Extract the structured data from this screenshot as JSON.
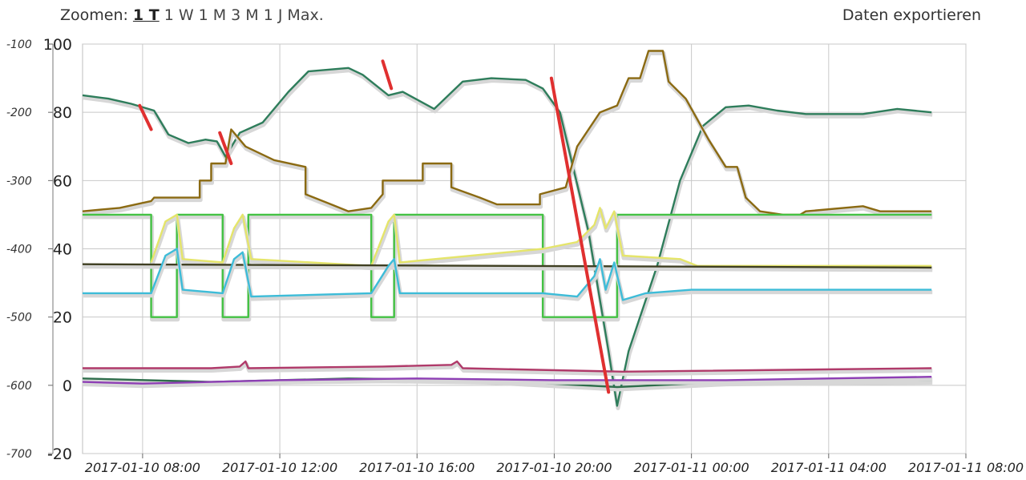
{
  "toolbar": {
    "zoom_label": "Zoomen:",
    "zoom_options": [
      "1 T",
      "1 W",
      "1 M",
      "3 M",
      "1 J",
      "Max."
    ],
    "zoom_active": "1 T",
    "export_label": "Daten exportieren"
  },
  "chart_data": {
    "type": "line",
    "title": "",
    "xlabel": "",
    "ylabel": "",
    "x_ticks": [
      "2017-01-10 08:00",
      "2017-01-10 12:00",
      "2017-01-10 16:00",
      "2017-01-10 20:00",
      "2017-01-11 00:00",
      "2017-01-11 04:00",
      "2017-01-11 08:00"
    ],
    "xlim": [
      "2017-01-10 06:15",
      "2017-01-11 08:00"
    ],
    "y_left": {
      "ticks": [
        -100,
        -200,
        -300,
        -400,
        -500,
        -600,
        -700
      ],
      "ylim": [
        -700,
        -100
      ]
    },
    "y_right": {
      "ticks": [
        100,
        80,
        60,
        40,
        20,
        0,
        -20
      ],
      "ylim": [
        -20,
        100
      ]
    },
    "grid": true,
    "legend": "none",
    "series": [
      {
        "color": "#2e7d5b",
        "axis": "right",
        "points": [
          [
            "2017-01-10 06:15",
            85
          ],
          [
            "2017-01-10 07:00",
            84
          ],
          [
            "2017-01-10 07:40",
            82.5
          ],
          [
            "2017-01-10 08:20",
            80.5
          ],
          [
            "2017-01-10 08:45",
            73.5
          ],
          [
            "2017-01-10 09:20",
            71
          ],
          [
            "2017-01-10 09:50",
            72
          ],
          [
            "2017-01-10 10:10",
            71.5
          ],
          [
            "2017-01-10 10:25",
            67
          ],
          [
            "2017-01-10 10:50",
            74
          ],
          [
            "2017-01-10 11:30",
            77
          ],
          [
            "2017-01-10 12:15",
            86
          ],
          [
            "2017-01-10 12:50",
            92
          ],
          [
            "2017-01-10 14:00",
            93
          ],
          [
            "2017-01-10 14:25",
            91
          ],
          [
            "2017-01-10 15:10",
            85
          ],
          [
            "2017-01-10 15:35",
            86
          ],
          [
            "2017-01-10 16:30",
            81
          ],
          [
            "2017-01-10 17:20",
            89
          ],
          [
            "2017-01-10 18:10",
            90
          ],
          [
            "2017-01-10 19:10",
            89.5
          ],
          [
            "2017-01-10 19:40",
            87
          ],
          [
            "2017-01-10 20:10",
            80
          ],
          [
            "2017-01-10 21:00",
            45
          ],
          [
            "2017-01-10 21:35",
            10
          ],
          [
            "2017-01-10 21:50",
            -6
          ],
          [
            "2017-01-10 22:10",
            10
          ],
          [
            "2017-01-10 23:00",
            35
          ],
          [
            "2017-01-10 23:40",
            60
          ],
          [
            "2017-01-11 00:20",
            76
          ],
          [
            "2017-01-11 01:00",
            81.5
          ],
          [
            "2017-01-11 01:40",
            82
          ],
          [
            "2017-01-11 02:30",
            80.5
          ],
          [
            "2017-01-11 03:20",
            79.5
          ],
          [
            "2017-01-11 05:00",
            79.5
          ],
          [
            "2017-01-11 06:00",
            81
          ],
          [
            "2017-01-11 07:00",
            80
          ]
        ]
      },
      {
        "color": "#8b6a12",
        "axis": "right",
        "points": [
          [
            "2017-01-10 06:15",
            51
          ],
          [
            "2017-01-10 07:20",
            52
          ],
          [
            "2017-01-10 08:15",
            54
          ],
          [
            "2017-01-10 08:20",
            55
          ],
          [
            "2017-01-10 09:40",
            55
          ],
          [
            "2017-01-10 09:40",
            60
          ],
          [
            "2017-01-10 10:00",
            60
          ],
          [
            "2017-01-10 10:00",
            65
          ],
          [
            "2017-01-10 10:25",
            65
          ],
          [
            "2017-01-10 10:35",
            75
          ],
          [
            "2017-01-10 11:00",
            70
          ],
          [
            "2017-01-10 11:50",
            66
          ],
          [
            "2017-01-10 12:45",
            64
          ],
          [
            "2017-01-10 12:45",
            56
          ],
          [
            "2017-01-10 13:30",
            53
          ],
          [
            "2017-01-10 14:00",
            51
          ],
          [
            "2017-01-10 14:40",
            52
          ],
          [
            "2017-01-10 15:00",
            56
          ],
          [
            "2017-01-10 15:00",
            60
          ],
          [
            "2017-01-10 16:00",
            60
          ],
          [
            "2017-01-10 16:10",
            60
          ],
          [
            "2017-01-10 16:10",
            65
          ],
          [
            "2017-01-10 17:00",
            65
          ],
          [
            "2017-01-10 17:00",
            58
          ],
          [
            "2017-01-10 17:50",
            55
          ],
          [
            "2017-01-10 18:20",
            53
          ],
          [
            "2017-01-10 19:35",
            53
          ],
          [
            "2017-01-10 19:35",
            56
          ],
          [
            "2017-01-10 20:20",
            58
          ],
          [
            "2017-01-10 20:40",
            70
          ],
          [
            "2017-01-10 21:20",
            80
          ],
          [
            "2017-01-10 21:50",
            82
          ],
          [
            "2017-01-10 22:00",
            86
          ],
          [
            "2017-01-10 22:10",
            90
          ],
          [
            "2017-01-10 22:30",
            90
          ],
          [
            "2017-01-10 22:45",
            98
          ],
          [
            "2017-01-10 23:10",
            98
          ],
          [
            "2017-01-10 23:20",
            89
          ],
          [
            "2017-01-10 23:50",
            84
          ],
          [
            "2017-01-11 00:30",
            72
          ],
          [
            "2017-01-11 01:00",
            64
          ],
          [
            "2017-01-11 01:20",
            64
          ],
          [
            "2017-01-11 01:35",
            55
          ],
          [
            "2017-01-11 02:00",
            51
          ],
          [
            "2017-01-11 02:40",
            50
          ],
          [
            "2017-01-11 03:10",
            50
          ],
          [
            "2017-01-11 03:20",
            51
          ],
          [
            "2017-01-11 05:00",
            52.5
          ],
          [
            "2017-01-11 05:30",
            51
          ],
          [
            "2017-01-11 07:00",
            51
          ]
        ]
      },
      {
        "color": "#44c244",
        "axis": "right",
        "points": [
          [
            "2017-01-10 06:15",
            50
          ],
          [
            "2017-01-10 08:15",
            50
          ],
          [
            "2017-01-10 08:15",
            20
          ],
          [
            "2017-01-10 09:00",
            20
          ],
          [
            "2017-01-10 09:00",
            50
          ],
          [
            "2017-01-10 10:20",
            50
          ],
          [
            "2017-01-10 10:20",
            20
          ],
          [
            "2017-01-10 11:05",
            20
          ],
          [
            "2017-01-10 11:05",
            50
          ],
          [
            "2017-01-10 14:40",
            50
          ],
          [
            "2017-01-10 14:40",
            20
          ],
          [
            "2017-01-10 15:20",
            20
          ],
          [
            "2017-01-10 15:20",
            50
          ],
          [
            "2017-01-10 19:40",
            50
          ],
          [
            "2017-01-10 19:40",
            20
          ],
          [
            "2017-01-10 21:50",
            20
          ],
          [
            "2017-01-10 21:50",
            50
          ],
          [
            "2017-01-11 07:00",
            50
          ]
        ]
      },
      {
        "color": "#e5e56a",
        "axis": "right",
        "points": [
          [
            "2017-01-10 08:15",
            36
          ],
          [
            "2017-01-10 08:40",
            48
          ],
          [
            "2017-01-10 09:00",
            50
          ],
          [
            "2017-01-10 09:10",
            37
          ],
          [
            "2017-01-10 10:20",
            36
          ],
          [
            "2017-01-10 10:40",
            46
          ],
          [
            "2017-01-10 10:55",
            50
          ],
          [
            "2017-01-10 11:10",
            37
          ],
          [
            "2017-01-10 14:40",
            35
          ],
          [
            "2017-01-10 15:10",
            48
          ],
          [
            "2017-01-10 15:20",
            50
          ],
          [
            "2017-01-10 15:30",
            36
          ],
          [
            "2017-01-10 19:40",
            40
          ],
          [
            "2017-01-10 20:40",
            42
          ],
          [
            "2017-01-10 21:10",
            47
          ],
          [
            "2017-01-10 21:20",
            52
          ],
          [
            "2017-01-10 21:30",
            46
          ],
          [
            "2017-01-10 21:45",
            51
          ],
          [
            "2017-01-10 22:00",
            38
          ],
          [
            "2017-01-10 23:40",
            37
          ],
          [
            "2017-01-11 00:10",
            35
          ],
          [
            "2017-01-11 07:00",
            35
          ]
        ]
      },
      {
        "color": "#3f3f22",
        "axis": "right",
        "points": [
          [
            "2017-01-10 06:15",
            35.5
          ],
          [
            "2017-01-11 07:00",
            34.5
          ]
        ]
      },
      {
        "color": "#3dbcd8",
        "axis": "right",
        "points": [
          [
            "2017-01-10 06:15",
            27
          ],
          [
            "2017-01-10 08:15",
            27
          ],
          [
            "2017-01-10 08:40",
            38
          ],
          [
            "2017-01-10 09:00",
            40
          ],
          [
            "2017-01-10 09:10",
            28
          ],
          [
            "2017-01-10 10:20",
            27
          ],
          [
            "2017-01-10 10:40",
            37
          ],
          [
            "2017-01-10 10:55",
            39
          ],
          [
            "2017-01-10 11:10",
            26
          ],
          [
            "2017-01-10 14:40",
            27
          ],
          [
            "2017-01-10 15:10",
            35
          ],
          [
            "2017-01-10 15:20",
            37
          ],
          [
            "2017-01-10 15:30",
            27
          ],
          [
            "2017-01-10 19:40",
            27
          ],
          [
            "2017-01-10 20:40",
            26
          ],
          [
            "2017-01-10 21:10",
            32
          ],
          [
            "2017-01-10 21:20",
            37
          ],
          [
            "2017-01-10 21:30",
            28
          ],
          [
            "2017-01-10 21:45",
            36
          ],
          [
            "2017-01-10 22:00",
            25
          ],
          [
            "2017-01-10 22:40",
            27
          ],
          [
            "2017-01-11 00:00",
            28
          ],
          [
            "2017-01-11 07:00",
            28
          ]
        ]
      },
      {
        "color": "#b03a6a",
        "axis": "right",
        "points": [
          [
            "2017-01-10 06:15",
            5
          ],
          [
            "2017-01-10 10:00",
            5
          ],
          [
            "2017-01-10 10:50",
            5.5
          ],
          [
            "2017-01-10 11:00",
            7
          ],
          [
            "2017-01-10 11:05",
            5
          ],
          [
            "2017-01-10 15:00",
            5.5
          ],
          [
            "2017-01-10 17:00",
            6
          ],
          [
            "2017-01-10 17:10",
            7
          ],
          [
            "2017-01-10 17:20",
            5
          ],
          [
            "2017-01-10 22:00",
            4
          ],
          [
            "2017-01-11 07:00",
            5
          ]
        ]
      },
      {
        "color": "#2f6e4c",
        "axis": "right",
        "points": [
          [
            "2017-01-10 06:15",
            2
          ],
          [
            "2017-01-10 10:00",
            1
          ],
          [
            "2017-01-10 14:00",
            2
          ],
          [
            "2017-01-10 18:00",
            1.5
          ],
          [
            "2017-01-10 21:50",
            -0.5
          ],
          [
            "2017-01-11 01:00",
            1
          ],
          [
            "2017-01-11 07:00",
            1.5
          ]
        ]
      },
      {
        "color": "#8e3fb5",
        "axis": "right",
        "points": [
          [
            "2017-01-10 06:15",
            1
          ],
          [
            "2017-01-10 08:00",
            0.5
          ],
          [
            "2017-01-10 12:00",
            1.5
          ],
          [
            "2017-01-10 16:00",
            2
          ],
          [
            "2017-01-10 20:00",
            1.5
          ],
          [
            "2017-01-11 01:00",
            1.5
          ],
          [
            "2017-01-11 07:00",
            2.5
          ]
        ]
      }
    ],
    "annotations": [
      {
        "type": "line",
        "color": "#e03030",
        "points": [
          [
            "2017-01-10 07:55",
            82
          ],
          [
            "2017-01-10 08:15",
            75
          ]
        ]
      },
      {
        "type": "line",
        "color": "#e03030",
        "points": [
          [
            "2017-01-10 10:15",
            74
          ],
          [
            "2017-01-10 10:35",
            65
          ]
        ]
      },
      {
        "type": "line",
        "color": "#e03030",
        "points": [
          [
            "2017-01-10 15:00",
            95
          ],
          [
            "2017-01-10 15:15",
            87
          ]
        ]
      },
      {
        "type": "line",
        "color": "#e03030",
        "points": [
          [
            "2017-01-10 19:55",
            90
          ],
          [
            "2017-01-10 21:35",
            -2
          ]
        ]
      }
    ]
  }
}
